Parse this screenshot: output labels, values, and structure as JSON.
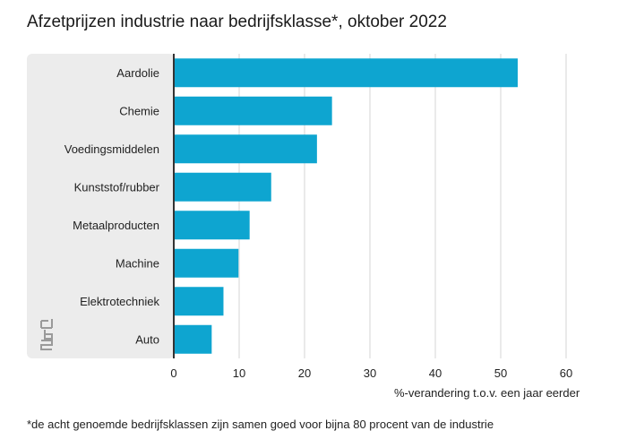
{
  "chart_data": {
    "type": "bar",
    "orientation": "horizontal",
    "title": "Afzetprijzen industrie naar bedrijfsklasse*, oktober 2022",
    "xlabel": "%-verandering t.o.v. een jaar eerder",
    "ylabel": "",
    "categories": [
      "Aardolie",
      "Chemie",
      "Voedingsmiddelen",
      "Kunststof/rubber",
      "Metaalproducten",
      "Machine",
      "Elektrotechniek",
      "Auto"
    ],
    "values": [
      52.6,
      24.2,
      21.9,
      14.9,
      11.6,
      9.9,
      7.6,
      5.8
    ],
    "xlim": [
      0,
      60
    ],
    "xticks": [
      0,
      10,
      20,
      30,
      40,
      50,
      60
    ],
    "grid": true,
    "bar_color": "#0ea5d0",
    "footnote": "*de acht genoemde bedrijfsklassen zijn samen goed voor bijna 80 procent van de industrie"
  },
  "logo": "cbs-logo"
}
